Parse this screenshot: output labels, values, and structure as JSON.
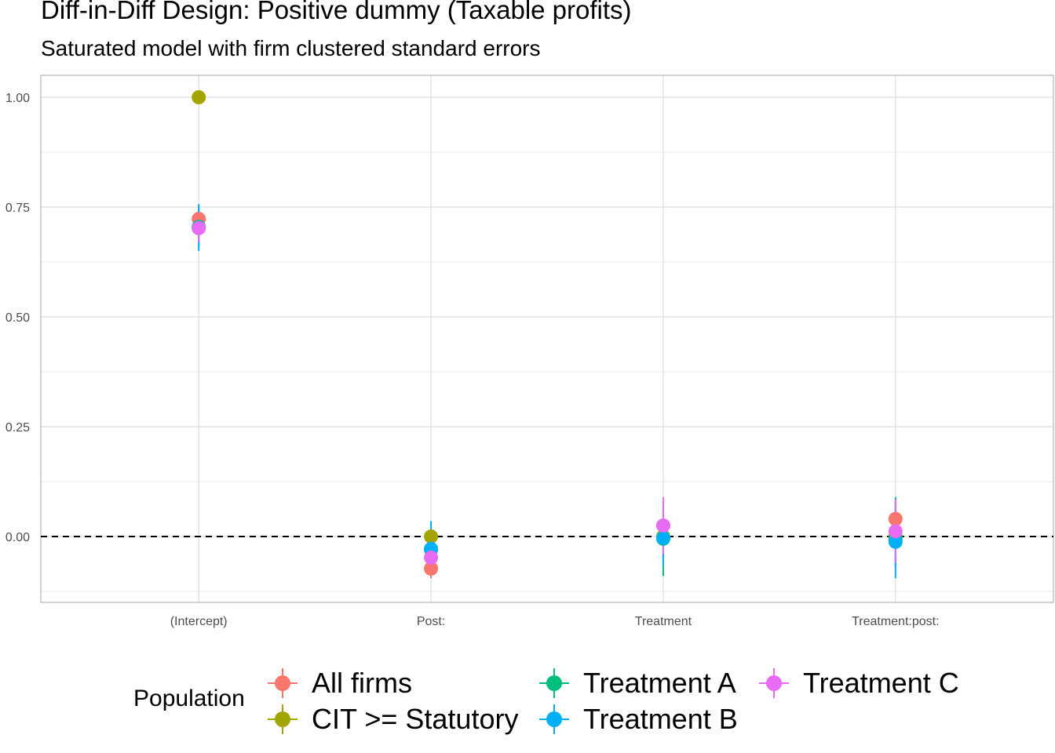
{
  "title": "Diff-in-Diff Design: Positive dummy (Taxable profits)",
  "subtitle": "Saturated model with firm clustered standard errors",
  "legend": {
    "title": "Population"
  },
  "chart_data": {
    "type": "scatter",
    "title": "Diff-in-Diff Design: Positive dummy (Taxable profits)",
    "subtitle": "Saturated model with firm clustered standard errors",
    "xlabel": "",
    "ylabel": "",
    "categories": [
      "(Intercept)",
      "Post:",
      "Treatment",
      "Treatment:post:"
    ],
    "y_ticks": [
      "0.00",
      "0.25",
      "0.50",
      "0.75",
      "1.00"
    ],
    "ylim": [
      -0.15,
      1.05
    ],
    "grid": true,
    "reference_line": {
      "y": 0,
      "style": "dashed"
    },
    "legend_position": "bottom",
    "series": [
      {
        "name": "All firms",
        "color": "#F8766D",
        "values": [
          0.723,
          -0.073,
          -0.002,
          0.04
        ],
        "lower": [
          0.69,
          -0.095,
          -0.05,
          0.0
        ],
        "upper": [
          0.755,
          -0.05,
          0.05,
          0.08
        ]
      },
      {
        "name": "CIT >= Statutory",
        "color": "#A3A500",
        "values": [
          1.0,
          0.0,
          0.0,
          0.0
        ],
        "lower": [
          1.0,
          0.0,
          0.0,
          0.0
        ],
        "upper": [
          1.0,
          0.0,
          0.0,
          0.0
        ]
      },
      {
        "name": "Treatment A",
        "color": "#00BF7D",
        "values": [
          0.705,
          -0.03,
          -0.005,
          -0.005
        ],
        "lower": [
          0.66,
          -0.07,
          -0.09,
          -0.07
        ],
        "upper": [
          0.75,
          0.01,
          0.08,
          0.09
        ]
      },
      {
        "name": "Treatment B",
        "color": "#00B0F6",
        "values": [
          0.703,
          -0.028,
          -0.003,
          -0.012
        ],
        "lower": [
          0.65,
          -0.09,
          -0.07,
          -0.095
        ],
        "upper": [
          0.757,
          0.035,
          0.06,
          0.07
        ]
      },
      {
        "name": "Treatment C",
        "color": "#E76BF3",
        "values": [
          0.702,
          -0.048,
          0.025,
          0.012
        ],
        "lower": [
          0.67,
          -0.08,
          -0.04,
          -0.06
        ],
        "upper": [
          0.735,
          -0.015,
          0.09,
          0.085
        ]
      }
    ]
  }
}
